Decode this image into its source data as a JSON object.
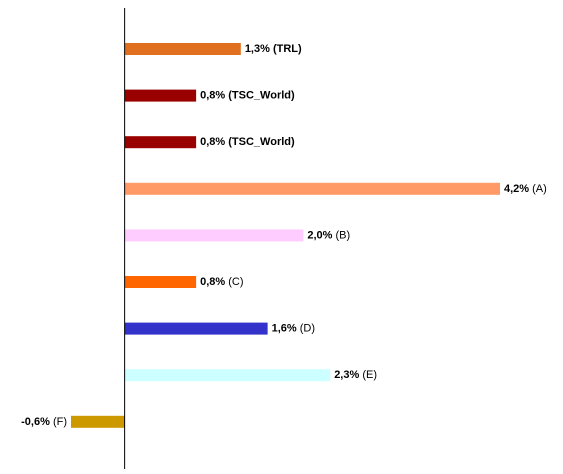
{
  "chart_data": {
    "type": "bar",
    "orientation": "horizontal",
    "categories": [
      "(TRL)",
      "(TSC_World)",
      "(TSC_World)",
      "(A)",
      "(B)",
      "(C)",
      "(D)",
      "(E)",
      "(F)"
    ],
    "values": [
      1.3,
      0.8,
      0.8,
      4.2,
      2.0,
      0.8,
      1.6,
      2.3,
      -0.6
    ],
    "value_labels": [
      "1,3%",
      "0,8%",
      "0,8%",
      "4,2%",
      "2,0%",
      "0,8%",
      "1,6%",
      "2,3%",
      "-0,6%"
    ],
    "category_bold": [
      true,
      true,
      true,
      false,
      false,
      false,
      false,
      false,
      false
    ],
    "colors": [
      "#e07020",
      "#990000",
      "#990000",
      "#ff9966",
      "#ffccff",
      "#ff6600",
      "#3333cc",
      "#ccffff",
      "#cc9900"
    ]
  }
}
